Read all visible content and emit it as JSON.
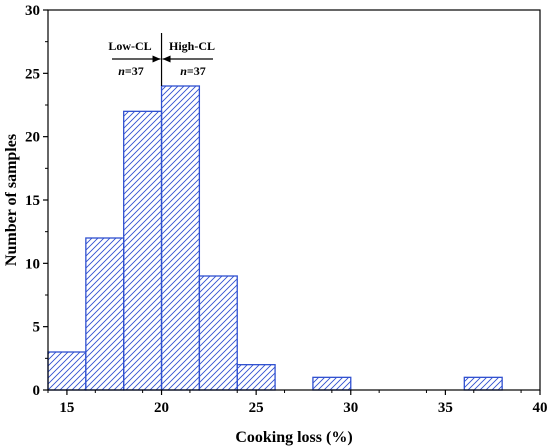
{
  "chart_data": {
    "type": "bar",
    "bins": [
      {
        "start": 14,
        "end": 16,
        "count": 3
      },
      {
        "start": 16,
        "end": 18,
        "count": 12
      },
      {
        "start": 18,
        "end": 20,
        "count": 22
      },
      {
        "start": 20,
        "end": 22,
        "count": 24
      },
      {
        "start": 22,
        "end": 24,
        "count": 9
      },
      {
        "start": 24,
        "end": 26,
        "count": 2
      },
      {
        "start": 28,
        "end": 30,
        "count": 1
      },
      {
        "start": 36,
        "end": 38,
        "count": 1
      }
    ],
    "xlabel": "Cooking loss (%)",
    "ylabel": "Number of samples",
    "xlim": [
      14,
      40
    ],
    "ylim": [
      0,
      30
    ],
    "xticks": [
      15,
      20,
      25,
      30,
      35,
      40
    ],
    "yticks": [
      0,
      5,
      10,
      15,
      20,
      25,
      30
    ],
    "grid": false,
    "bar_fill": "hatched",
    "bar_color": "#3050d0",
    "annotations": {
      "divider_x": 20,
      "low": {
        "label": "Low-CL",
        "n_label": "n",
        "n_value": "=37"
      },
      "high": {
        "label": "High-CL",
        "n_label": "n",
        "n_value": "=37"
      }
    }
  }
}
